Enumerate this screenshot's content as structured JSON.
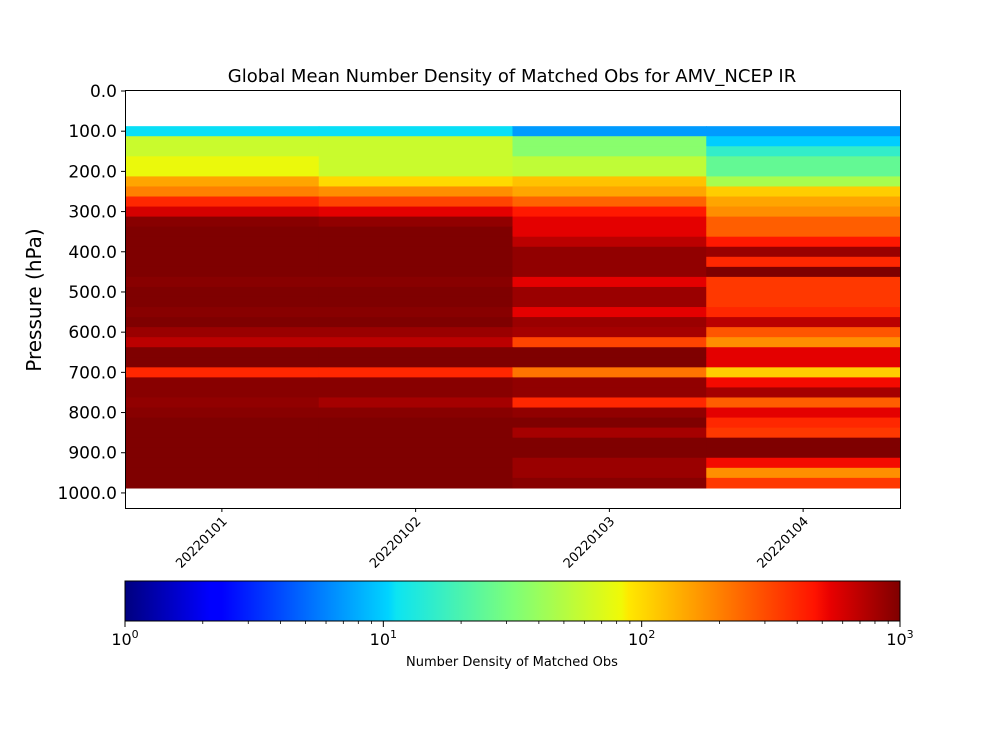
{
  "chart_data": {
    "type": "heatmap",
    "title": "Global Mean Number Density of Matched Obs for AMV_NCEP IR",
    "xlabel": "",
    "ylabel": "Pressure (hPa)",
    "x": [
      "20220101",
      "20220102",
      "20220103",
      "20220104"
    ],
    "ylim": [
      1037.5,
      -2.5
    ],
    "y_ticks": [
      "0.0",
      "100.0",
      "200.0",
      "300.0",
      "400.0",
      "500.0",
      "600.0",
      "700.0",
      "800.0",
      "900.0",
      "1000.0"
    ],
    "y_bins": [
      [
        87.5,
        112.5
      ],
      [
        112.5,
        137.5
      ],
      [
        137.5,
        162.5
      ],
      [
        162.5,
        187.5
      ],
      [
        187.5,
        212.5
      ],
      [
        212.5,
        237.5
      ],
      [
        237.5,
        262.5
      ],
      [
        262.5,
        287.5
      ],
      [
        287.5,
        312.5
      ],
      [
        312.5,
        337.5
      ],
      [
        337.5,
        362.5
      ],
      [
        362.5,
        387.5
      ],
      [
        387.5,
        412.5
      ],
      [
        412.5,
        437.5
      ],
      [
        437.5,
        462.5
      ],
      [
        462.5,
        487.5
      ],
      [
        487.5,
        512.5
      ],
      [
        512.5,
        537.5
      ],
      [
        537.5,
        562.5
      ],
      [
        562.5,
        587.5
      ],
      [
        587.5,
        612.5
      ],
      [
        612.5,
        637.5
      ],
      [
        637.5,
        662.5
      ],
      [
        662.5,
        687.5
      ],
      [
        687.5,
        712.5
      ],
      [
        712.5,
        737.5
      ],
      [
        737.5,
        762.5
      ],
      [
        762.5,
        787.5
      ],
      [
        787.5,
        812.5
      ],
      [
        812.5,
        837.5
      ],
      [
        837.5,
        862.5
      ],
      [
        862.5,
        887.5
      ],
      [
        887.5,
        912.5
      ],
      [
        912.5,
        937.5
      ],
      [
        937.5,
        962.5
      ],
      [
        962.5,
        987.5
      ]
    ],
    "values": [
      [
        11,
        11,
        7,
        7
      ],
      [
        60,
        60,
        35,
        10
      ],
      [
        60,
        60,
        35,
        16
      ],
      [
        80,
        60,
        55,
        25
      ],
      [
        80,
        60,
        55,
        25
      ],
      [
        150,
        100,
        120,
        45
      ],
      [
        200,
        180,
        150,
        110
      ],
      [
        400,
        320,
        250,
        150
      ],
      [
        600,
        550,
        450,
        180
      ],
      [
        950,
        900,
        550,
        260
      ],
      [
        1000,
        1000,
        550,
        260
      ],
      [
        1000,
        1000,
        700,
        450
      ],
      [
        1000,
        1000,
        900,
        850
      ],
      [
        1000,
        1000,
        900,
        400
      ],
      [
        1000,
        1000,
        900,
        1000
      ],
      [
        950,
        950,
        550,
        350
      ],
      [
        1000,
        1000,
        850,
        350
      ],
      [
        1000,
        1000,
        850,
        350
      ],
      [
        950,
        950,
        550,
        400
      ],
      [
        1000,
        1000,
        850,
        700
      ],
      [
        850,
        850,
        800,
        280
      ],
      [
        700,
        700,
        320,
        180
      ],
      [
        1000,
        1000,
        1000,
        550
      ],
      [
        1000,
        1000,
        1000,
        550
      ],
      [
        400,
        400,
        220,
        110
      ],
      [
        950,
        950,
        900,
        500
      ],
      [
        950,
        950,
        900,
        800
      ],
      [
        900,
        800,
        400,
        260
      ],
      [
        950,
        950,
        900,
        550
      ],
      [
        1000,
        1000,
        1000,
        400
      ],
      [
        1000,
        1000,
        800,
        350
      ],
      [
        1000,
        1000,
        1000,
        1000
      ],
      [
        1000,
        1000,
        1000,
        1000
      ],
      [
        1000,
        1000,
        850,
        500
      ],
      [
        1000,
        1000,
        850,
        180
      ],
      [
        1000,
        1000,
        950,
        350
      ]
    ],
    "colorbar": {
      "label": "Number Density of Matched Obs",
      "scale": "log",
      "range": [
        1,
        1000
      ],
      "tick_labels": [
        {
          "base": "10",
          "exp": "0",
          "value": 1
        },
        {
          "base": "10",
          "exp": "1",
          "value": 10
        },
        {
          "base": "10",
          "exp": "2",
          "value": 100
        },
        {
          "base": "10",
          "exp": "3",
          "value": 1000
        }
      ],
      "colormap": "jet"
    }
  }
}
